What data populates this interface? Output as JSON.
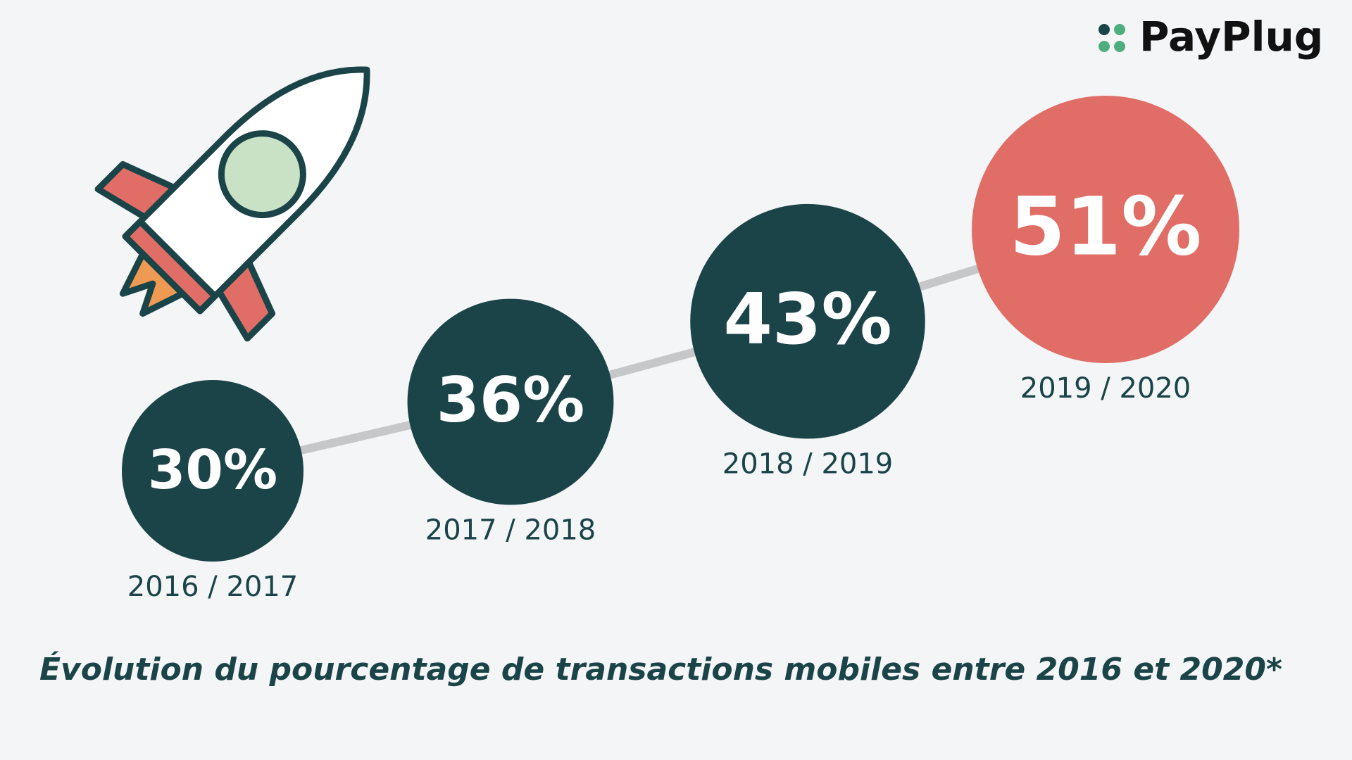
{
  "brand": "PayPlug",
  "chart_data": {
    "type": "bubble-line",
    "title": "Évolution du pourcentage de transactions mobiles entre 2016 et 2020*",
    "categories": [
      "2016 / 2017",
      "2017 / 2018",
      "2018 / 2019",
      "2019 / 2020"
    ],
    "values": [
      30,
      36,
      43,
      51
    ],
    "value_labels": [
      "30%",
      "36%",
      "43%",
      "51%"
    ],
    "colors": [
      "#1b4448",
      "#1b4448",
      "#1b4448",
      "#e06e66"
    ],
    "line_color": "#c6c7c8"
  }
}
